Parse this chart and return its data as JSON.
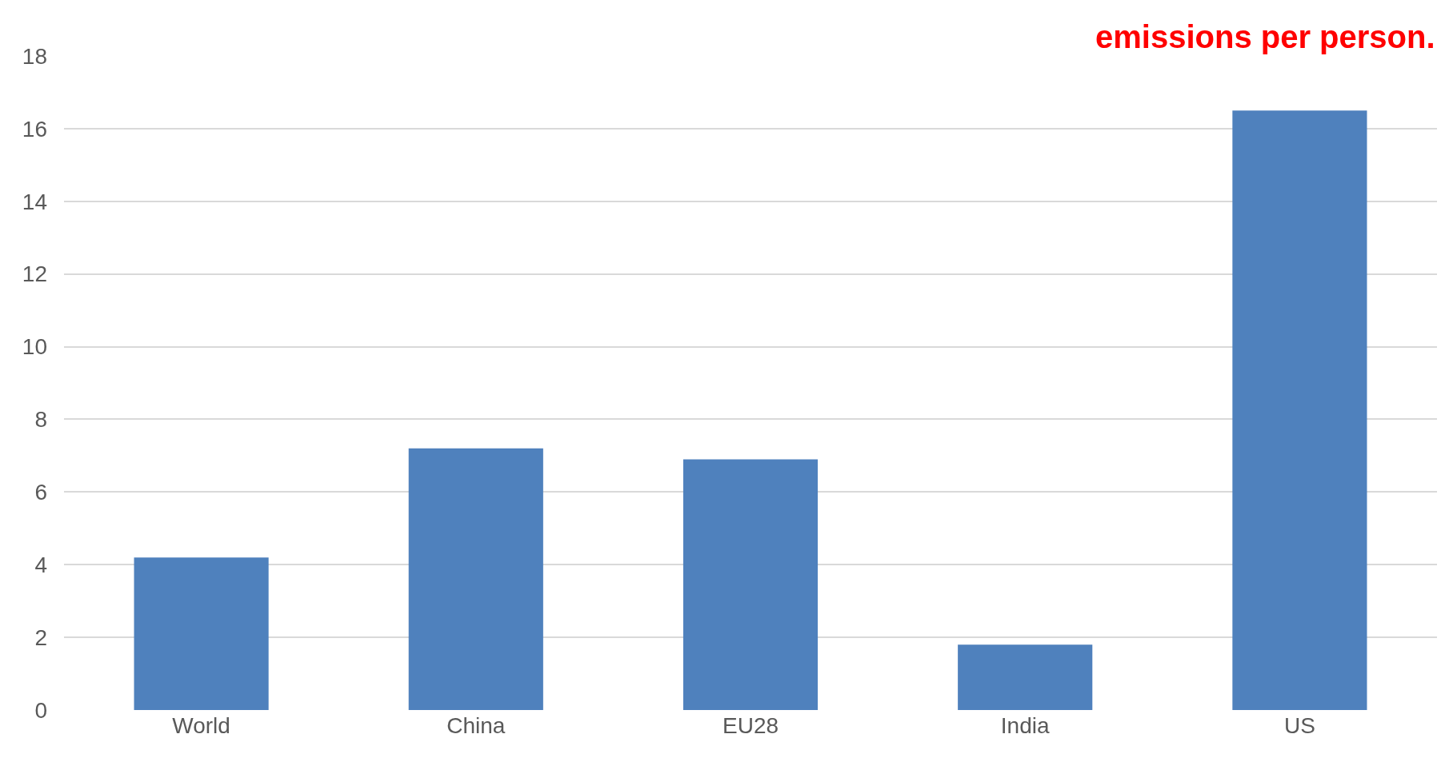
{
  "chart_data": {
    "type": "bar",
    "categories": [
      "World",
      "China",
      "EU28",
      "India",
      "US"
    ],
    "values": [
      4.2,
      7.2,
      6.9,
      1.8,
      16.5
    ],
    "color": "#4f81bd",
    "ylim": [
      0,
      18
    ],
    "yticks": [
      0,
      2,
      4,
      6,
      8,
      10,
      12,
      14,
      16,
      18
    ],
    "grid": "y",
    "legend": false,
    "annotations": [
      "emissions per person."
    ]
  }
}
